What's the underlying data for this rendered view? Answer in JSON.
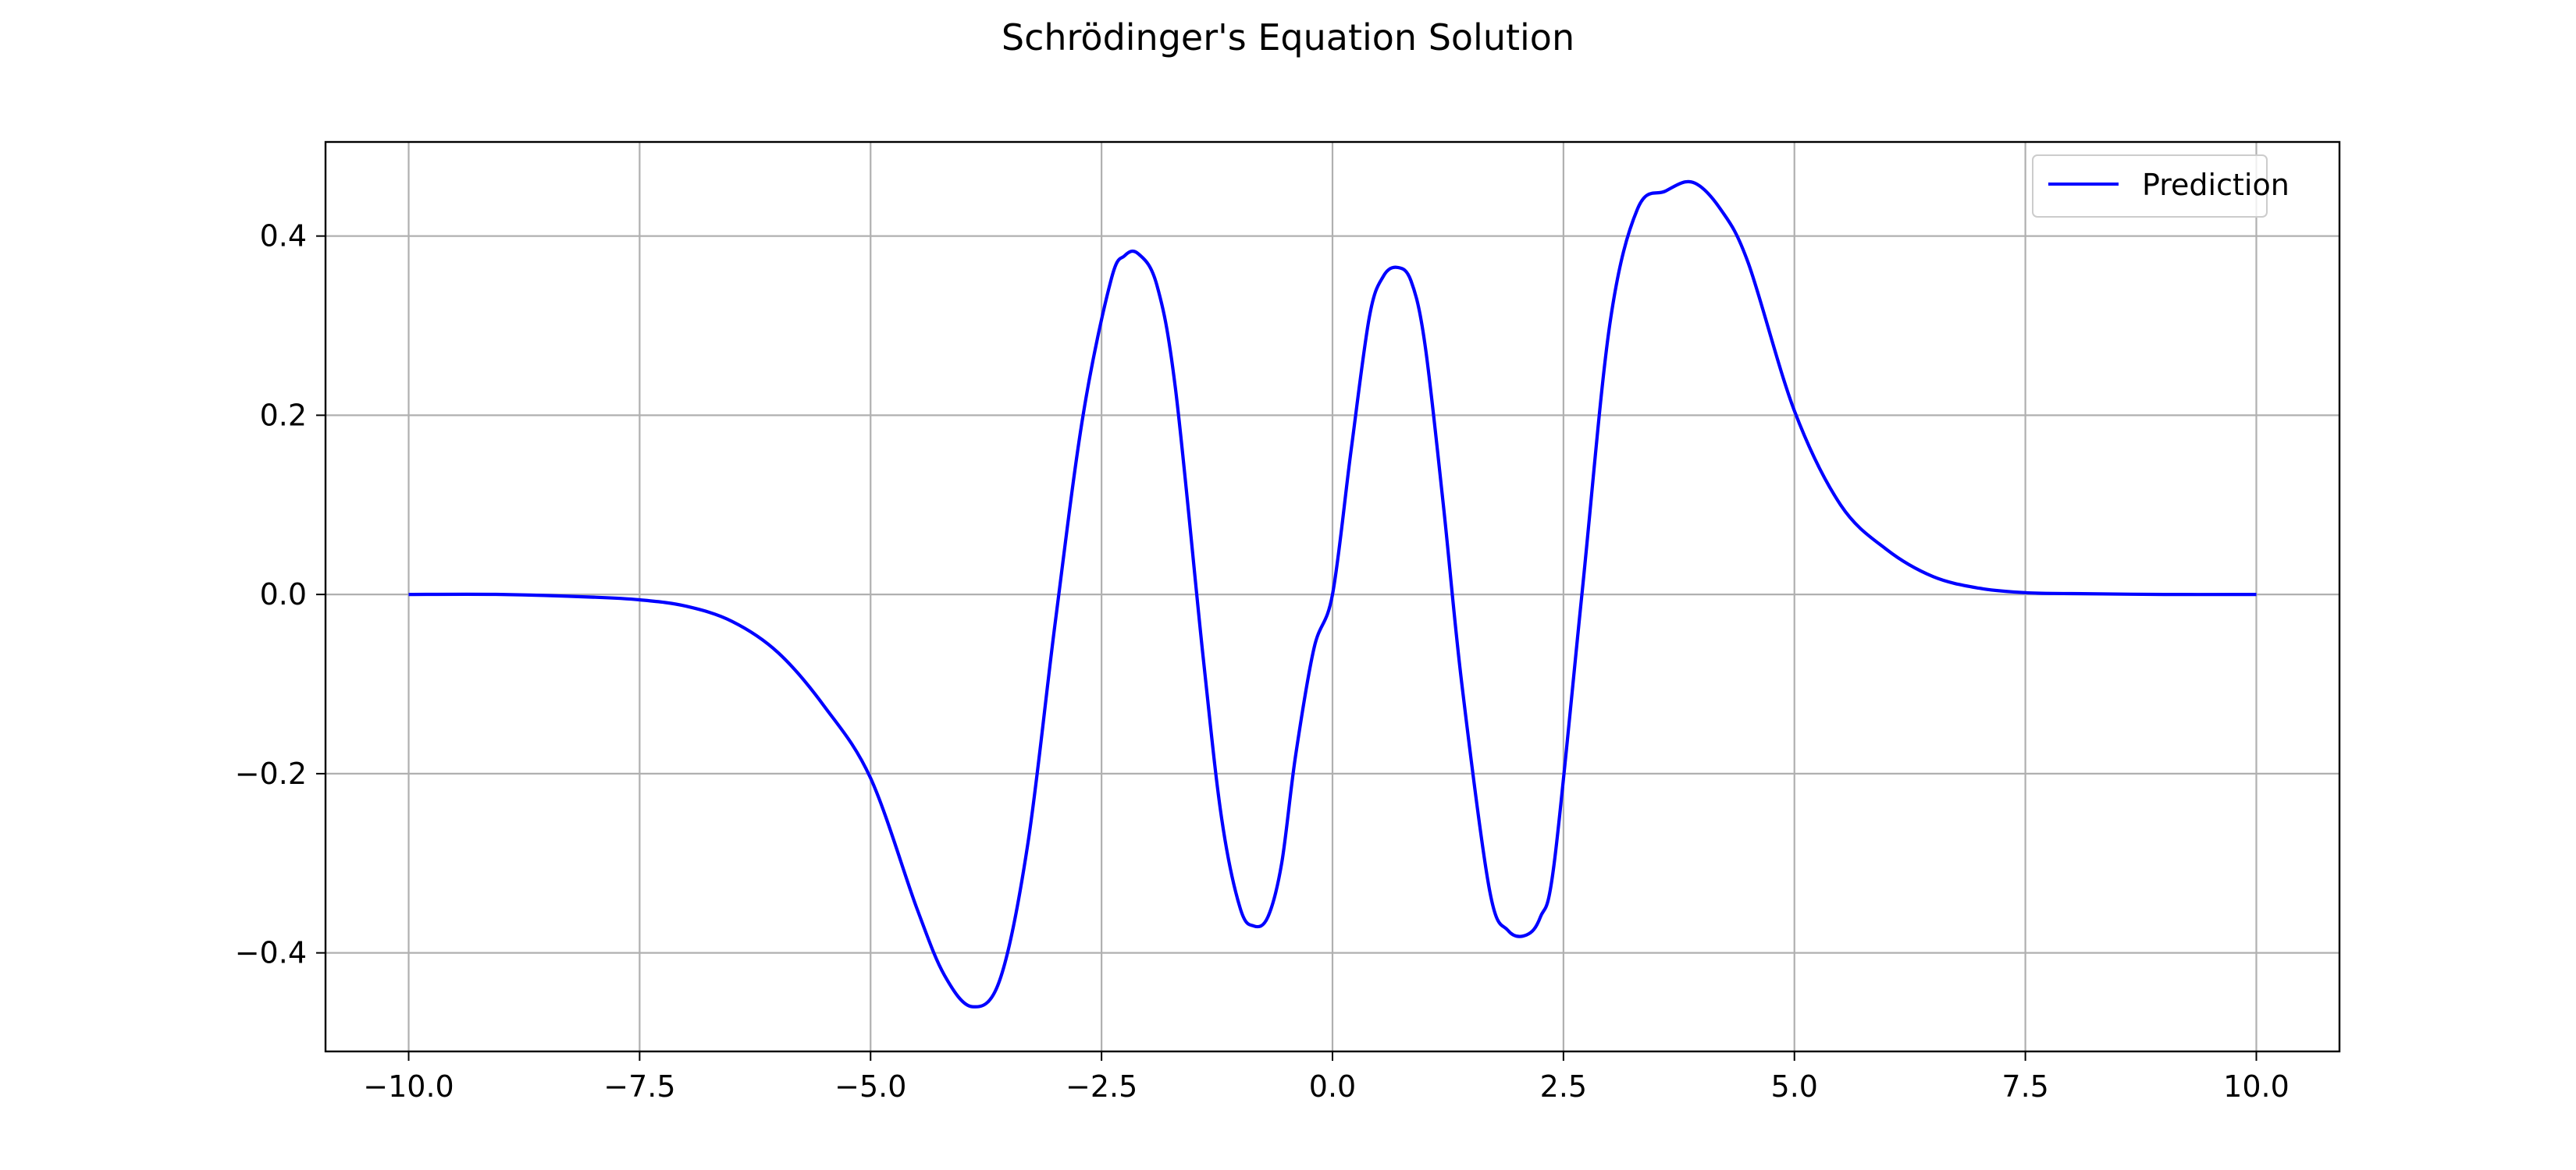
{
  "chart_data": {
    "type": "line",
    "title": "Schrödinger's Equation Solution",
    "xlabel": "",
    "ylabel": "",
    "xlim": [
      -10.9,
      10.9
    ],
    "ylim": [
      -0.51,
      0.505
    ],
    "grid": true,
    "legend": {
      "placement": "top-right",
      "entries": [
        "Prediction"
      ]
    },
    "xticks": [
      -10.0,
      -7.5,
      -5.0,
      -2.5,
      0.0,
      2.5,
      5.0,
      7.5,
      10.0
    ],
    "xtick_labels": [
      "−10.0",
      "−7.5",
      "−5.0",
      "−2.5",
      "0.0",
      "2.5",
      "5.0",
      "7.5",
      "10.0"
    ],
    "yticks": [
      -0.4,
      -0.2,
      0.0,
      0.2,
      0.4
    ],
    "ytick_labels": [
      "−0.4",
      "−0.2",
      "0.0",
      "0.2",
      "0.4"
    ],
    "colors": {
      "series": "#0000ff",
      "grid": "#b0b0b0",
      "axes": "#000000"
    },
    "series": [
      {
        "name": "Prediction",
        "x": [
          -10.0,
          -9.0,
          -8.0,
          -7.5,
          -7.0,
          -6.5,
          -6.0,
          -5.5,
          -5.0,
          -4.5,
          -4.2,
          -3.9,
          -3.6,
          -3.3,
          -3.0,
          -2.7,
          -2.4,
          -2.25,
          -2.1,
          -1.9,
          -1.7,
          -1.4,
          -1.2,
          -1.0,
          -0.85,
          -0.7,
          -0.55,
          -0.4,
          -0.2,
          0.0,
          0.2,
          0.4,
          0.55,
          0.7,
          0.85,
          1.0,
          1.2,
          1.4,
          1.7,
          1.9,
          2.1,
          2.25,
          2.4,
          2.7,
          3.0,
          3.3,
          3.6,
          3.9,
          4.2,
          4.5,
          5.0,
          5.5,
          6.0,
          6.5,
          7.0,
          7.5,
          8.0,
          9.0,
          10.0
        ],
        "y": [
          0.0,
          0.0,
          -0.003,
          -0.006,
          -0.013,
          -0.03,
          -0.065,
          -0.125,
          -0.205,
          -0.35,
          -0.425,
          -0.46,
          -0.43,
          -0.28,
          -0.03,
          0.2,
          0.35,
          0.378,
          0.38,
          0.345,
          0.23,
          -0.07,
          -0.25,
          -0.35,
          -0.37,
          -0.36,
          -0.3,
          -0.18,
          -0.06,
          0.0,
          0.16,
          0.31,
          0.355,
          0.365,
          0.35,
          0.28,
          0.1,
          -0.1,
          -0.33,
          -0.375,
          -0.38,
          -0.36,
          -0.3,
          0.0,
          0.3,
          0.43,
          0.45,
          0.46,
          0.43,
          0.37,
          0.205,
          0.1,
          0.05,
          0.02,
          0.007,
          0.002,
          0.001,
          0.0,
          0.0
        ]
      }
    ]
  }
}
